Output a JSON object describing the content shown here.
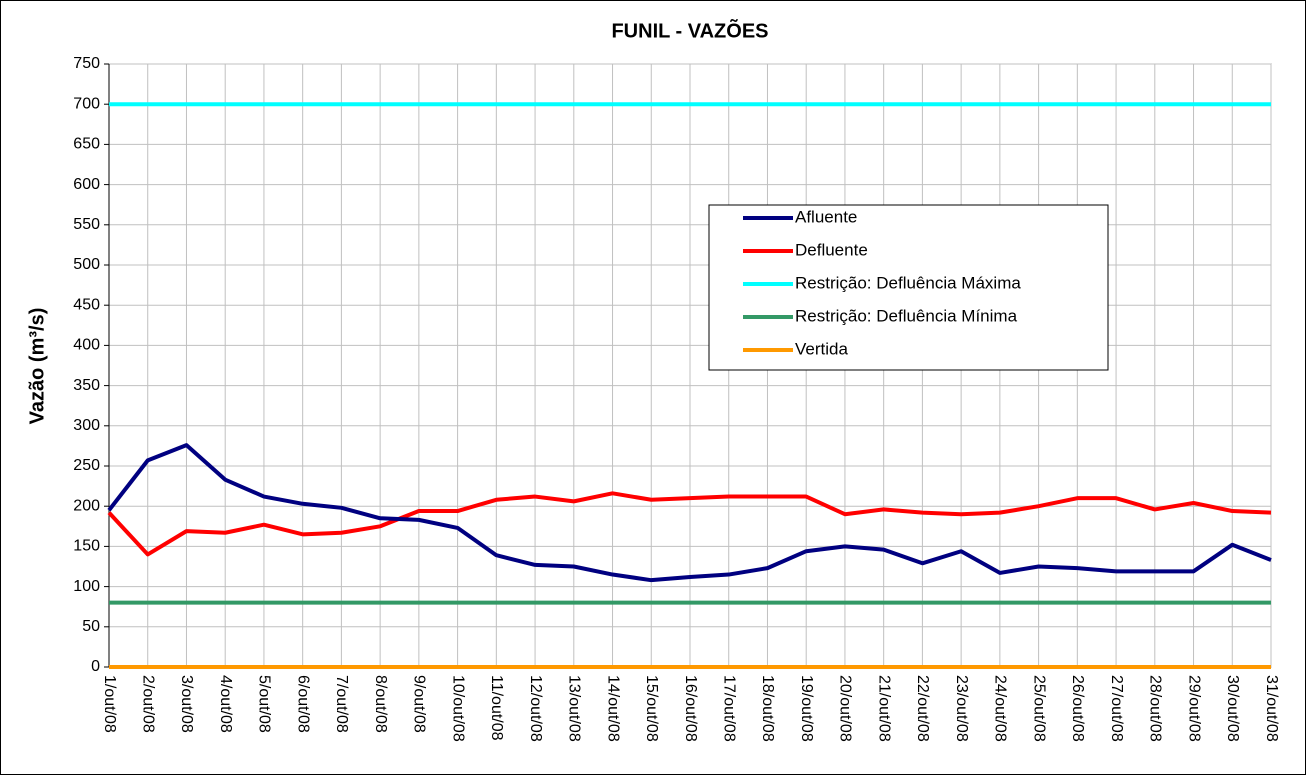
{
  "chart_data": {
    "type": "line",
    "title": "FUNIL - VAZÕES",
    "y_label": "Vazão (m³/s)",
    "categories": [
      "1/out/08",
      "2/out/08",
      "3/out/08",
      "4/out/08",
      "5/out/08",
      "6/out/08",
      "7/out/08",
      "8/out/08",
      "9/out/08",
      "10/out/08",
      "11/out/08",
      "12/out/08",
      "13/out/08",
      "14/out/08",
      "15/out/08",
      "16/out/08",
      "17/out/08",
      "18/out/08",
      "19/out/08",
      "20/out/08",
      "21/out/08",
      "22/out/08",
      "23/out/08",
      "24/out/08",
      "25/out/08",
      "26/out/08",
      "27/out/08",
      "28/out/08",
      "29/out/08",
      "30/out/08",
      "31/out/08"
    ],
    "series": [
      {
        "name": "Afluente",
        "color": "#000080",
        "values": [
          195,
          257,
          276,
          233,
          212,
          203,
          198,
          185,
          183,
          173,
          139,
          127,
          125,
          115,
          108,
          112,
          115,
          123,
          144,
          150,
          146,
          129,
          144,
          117,
          125,
          123,
          119,
          119,
          119,
          152,
          133
        ]
      },
      {
        "name": "Defluente",
        "color": "#ff0000",
        "values": [
          192,
          140,
          169,
          167,
          177,
          165,
          167,
          175,
          194,
          194,
          208,
          212,
          206,
          216,
          208,
          210,
          212,
          212,
          212,
          190,
          196,
          192,
          190,
          192,
          200,
          210,
          210,
          196,
          204,
          194,
          192
        ]
      },
      {
        "name": "Restrição: Defluência Máxima",
        "color": "#00ffff",
        "values": [
          700,
          700,
          700,
          700,
          700,
          700,
          700,
          700,
          700,
          700,
          700,
          700,
          700,
          700,
          700,
          700,
          700,
          700,
          700,
          700,
          700,
          700,
          700,
          700,
          700,
          700,
          700,
          700,
          700,
          700,
          700
        ]
      },
      {
        "name": "Restrição: Defluência Mínima",
        "color": "#339966",
        "values": [
          80,
          80,
          80,
          80,
          80,
          80,
          80,
          80,
          80,
          80,
          80,
          80,
          80,
          80,
          80,
          80,
          80,
          80,
          80,
          80,
          80,
          80,
          80,
          80,
          80,
          80,
          80,
          80,
          80,
          80,
          80
        ]
      },
      {
        "name": "Vertida",
        "color": "#ff9900",
        "values": [
          0,
          0,
          0,
          0,
          0,
          0,
          0,
          0,
          0,
          0,
          0,
          0,
          0,
          0,
          0,
          0,
          0,
          0,
          0,
          0,
          0,
          0,
          0,
          0,
          0,
          0,
          0,
          0,
          0,
          0,
          0
        ]
      }
    ],
    "ylim": [
      0,
      750
    ],
    "yticks": [
      0,
      50,
      100,
      150,
      200,
      250,
      300,
      350,
      400,
      450,
      500,
      550,
      600,
      650,
      700,
      750
    ],
    "grid": true
  }
}
